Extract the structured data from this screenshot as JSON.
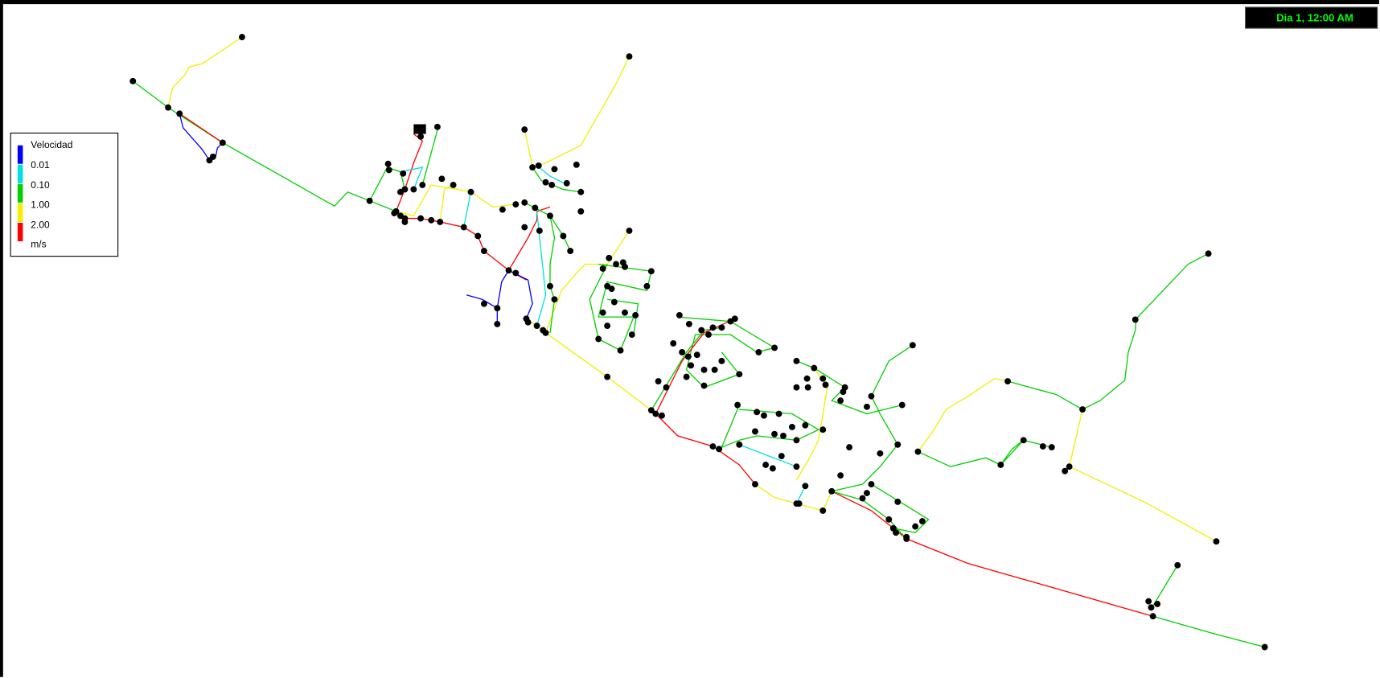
{
  "header": {
    "timestamp": "Dia 1, 12:00 AM"
  },
  "legend": {
    "title": "Velocidad",
    "bands": [
      {
        "color": "#0000ff"
      },
      {
        "color": "#00e0e0"
      },
      {
        "color": "#00d000"
      },
      {
        "color": "#f0f000"
      },
      {
        "color": "#ff0000"
      }
    ],
    "labels": [
      "0.01",
      "0.10",
      "1.00",
      "2.00"
    ],
    "unit": "m/s"
  }
}
